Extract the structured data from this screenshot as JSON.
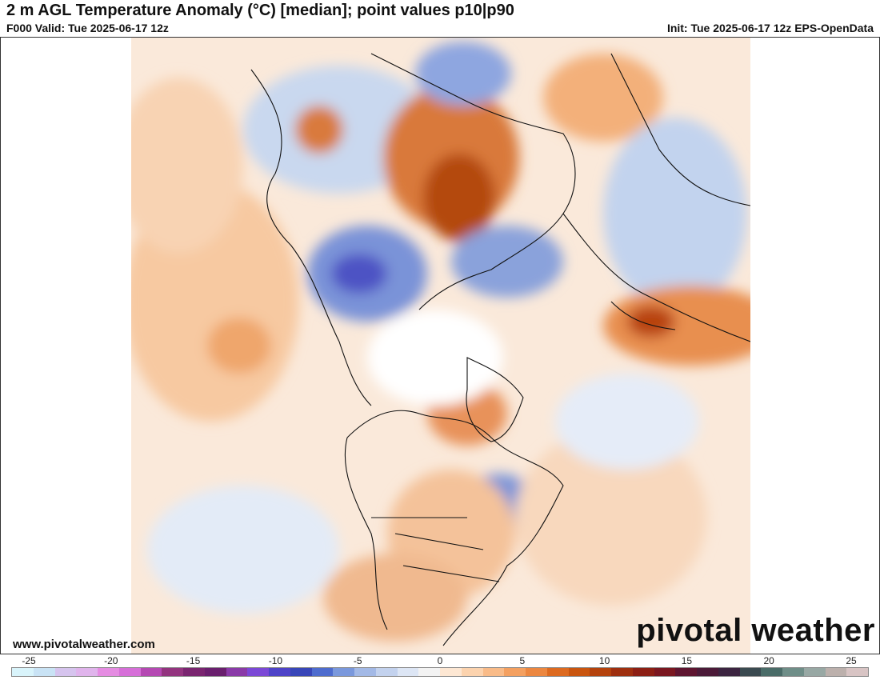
{
  "header": {
    "title": "2 m AGL Temperature Anomaly (°C) [median]; point values p10|p90",
    "valid": "F000 Valid: Tue 2025-06-17 12z",
    "init": "Init: Tue 2025-06-17 12z EPS-OpenData"
  },
  "footer": {
    "url": "www.pivotalweather.com",
    "brand": "pivotal weather"
  },
  "colorbar": {
    "ticks": [
      "-25",
      "-20",
      "-15",
      "-10",
      "-5",
      "0",
      "5",
      "10",
      "15",
      "20",
      "25"
    ],
    "colors": [
      "#d9f4fb",
      "#c9e3f5",
      "#d6c4ee",
      "#e0b4ec",
      "#e58ce2",
      "#d66fd8",
      "#b549b3",
      "#93347f",
      "#7a2570",
      "#6a1f6e",
      "#8a3aa8",
      "#7b48d6",
      "#4e43c8",
      "#3846b8",
      "#4e6cce",
      "#7a98dc",
      "#a3b9e6",
      "#c3d2ee",
      "#dde6f5",
      "#f3f3f3",
      "#fde7d3",
      "#fcd3ae",
      "#f9bb88",
      "#f4a060",
      "#ec8740",
      "#dd6a20",
      "#c9550f",
      "#b4420d",
      "#9e2f0f",
      "#8c1f14",
      "#7a1720",
      "#5e1530",
      "#4b1a38",
      "#3c2440",
      "#3a4a50",
      "#4a6c68",
      "#6f8e88",
      "#98a8a4",
      "#bcb0ac",
      "#d8c4c4"
    ]
  }
}
